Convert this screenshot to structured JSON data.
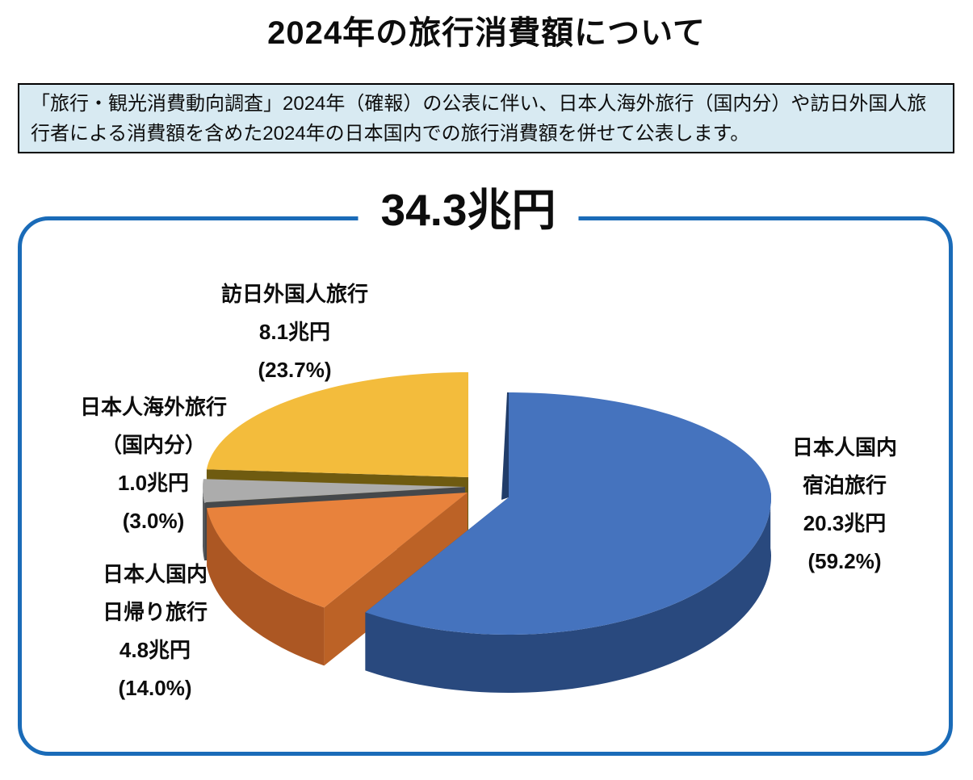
{
  "page": {
    "title": "2024年の旅行消費額について"
  },
  "notice": {
    "text": "「旅行・観光消費動向調査」2024年（確報）の公表に伴い、日本人海外旅行（国内分）や訪日外国人旅行者による消費額を含めた2024年の日本国内での旅行消費額を併せて公表します。"
  },
  "chart_data": {
    "type": "pie",
    "style": "3d-exploded",
    "title": "34.3兆円",
    "total_label": "34.3兆円",
    "total_trillion_yen": 34.3,
    "unit": "兆円",
    "start_angle_deg": 0,
    "direction": "clockwise",
    "legend_position": "labels-around-pie",
    "slices": [
      {
        "id": "domestic-overnight",
        "label": "日本人国内宿泊旅行",
        "label_lines": [
          "日本人国内",
          "宿泊旅行",
          "20.3兆円",
          "(59.2%)"
        ],
        "value_trillion_yen": 20.3,
        "percent": 59.2,
        "color": "#4573be",
        "side_color": "#29497e",
        "cut_color": "#203c69"
      },
      {
        "id": "domestic-daytrip",
        "label": "日本人国内日帰り旅行",
        "label_lines": [
          "日本人国内",
          "日帰り旅行",
          "4.8兆円",
          "(14.0%)"
        ],
        "value_trillion_yen": 4.8,
        "percent": 14.0,
        "color": "#e8823c",
        "side_color": "#ac5723",
        "cut_color": "#bc6226"
      },
      {
        "id": "overseas-domestic-portion",
        "label": "日本人海外旅行（国内分）",
        "label_lines": [
          "日本人海外旅行",
          "（国内分）",
          "1.0兆円",
          "(3.0%)"
        ],
        "value_trillion_yen": 1.0,
        "percent": 3.0,
        "color": "#acacac",
        "side_color": "#55585b",
        "cut_color": "#45484b"
      },
      {
        "id": "inbound-foreign",
        "label": "訪日外国人旅行",
        "label_lines": [
          "訪日外国人旅行",
          "8.1兆円",
          "(23.7%)"
        ],
        "value_trillion_yen": 8.1,
        "percent": 23.7,
        "color": "#f3bc3c",
        "side_color": "#8a6d1a",
        "cut_color": "#6f5b10"
      }
    ]
  }
}
